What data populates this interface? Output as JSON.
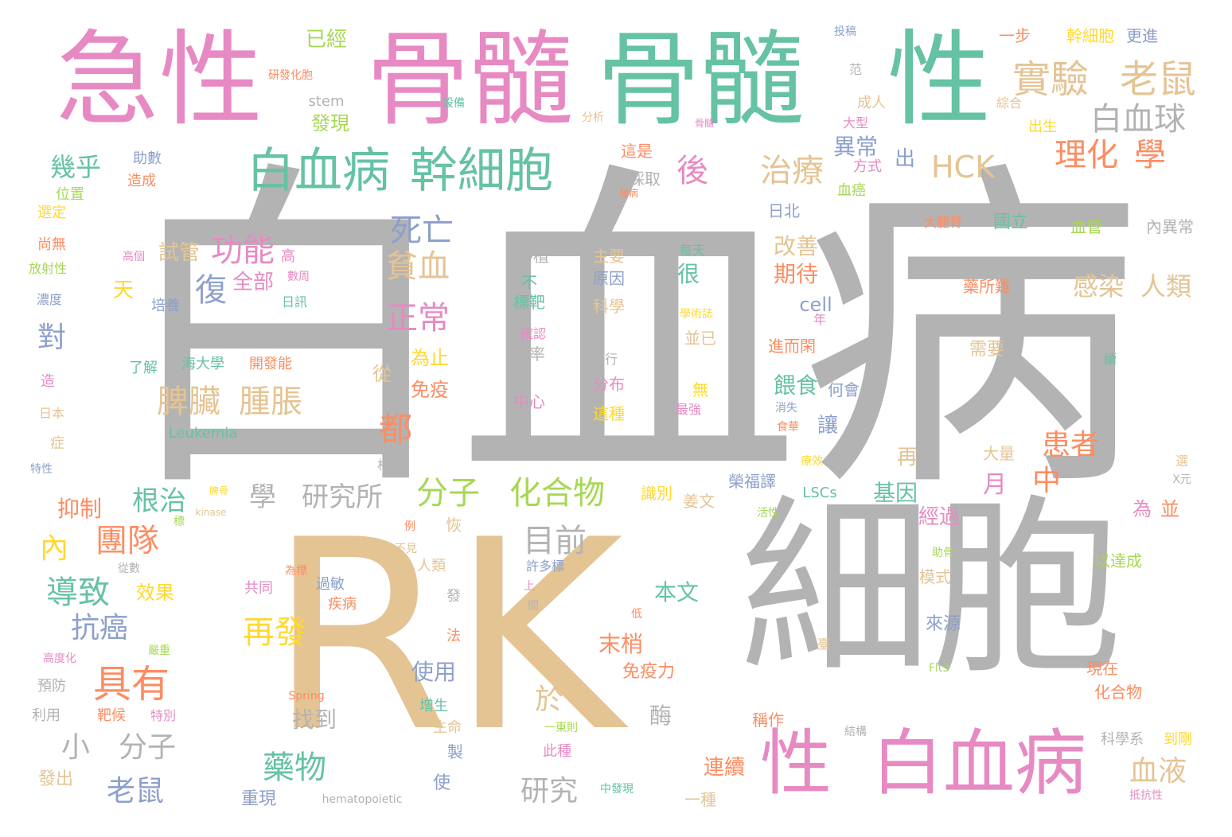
{
  "words": [
    {
      "text": "白血病",
      "color": "#b3b3b3"
    },
    {
      "text": "RK",
      "color": "#e5c494"
    },
    {
      "text": "細胞",
      "color": "#b3b3b3"
    },
    {
      "text": "骨髓",
      "color": "#e78ac3"
    },
    {
      "text": "骨髓",
      "color": "#66c2a5"
    },
    {
      "text": "急性",
      "color": "#e78ac3"
    },
    {
      "text": "性",
      "color": "#66c2a5"
    },
    {
      "text": "白血病",
      "color": "#e78ac3"
    },
    {
      "text": "性",
      "color": "#e78ac3"
    },
    {
      "text": "白血病",
      "color": "#66c2a5"
    },
    {
      "text": "幹細胞",
      "color": "#66c2a5"
    },
    {
      "text": "實驗",
      "color": "#e5c494"
    },
    {
      "text": "老鼠",
      "color": "#e5c494"
    },
    {
      "text": "白血球",
      "color": "#b3b3b3"
    },
    {
      "text": "理化",
      "color": "#fc8d62"
    },
    {
      "text": "學",
      "color": "#fc8d62"
    },
    {
      "text": "HCK",
      "color": "#e5c494"
    },
    {
      "text": "治療",
      "color": "#e5c494"
    },
    {
      "text": "後",
      "color": "#e78ac3"
    },
    {
      "text": "死亡",
      "color": "#8da0cb"
    },
    {
      "text": "貧血",
      "color": "#e5c494"
    },
    {
      "text": "正常",
      "color": "#e78ac3"
    },
    {
      "text": "功能",
      "color": "#e78ac3"
    },
    {
      "text": "試管",
      "color": "#e5c494"
    },
    {
      "text": "全部",
      "color": "#e78ac3"
    },
    {
      "text": "復",
      "color": "#8da0cb"
    },
    {
      "text": "脾臟",
      "color": "#e5c494"
    },
    {
      "text": "腫脹",
      "color": "#e5c494"
    },
    {
      "text": "都",
      "color": "#fc8d62"
    },
    {
      "text": "分子",
      "color": "#a6d854"
    },
    {
      "text": "化合物",
      "color": "#a6d854"
    },
    {
      "text": "目前",
      "color": "#b3b3b3"
    },
    {
      "text": "學",
      "color": "#b3b3b3"
    },
    {
      "text": "研究所",
      "color": "#b3b3b3"
    },
    {
      "text": "根治",
      "color": "#66c2a5"
    },
    {
      "text": "團隊",
      "color": "#fc8d62"
    },
    {
      "text": "內",
      "color": "#ffd92f"
    },
    {
      "text": "導致",
      "color": "#66c2a5"
    },
    {
      "text": "抗癌",
      "color": "#8da0cb"
    },
    {
      "text": "具有",
      "color": "#fc8d62"
    },
    {
      "text": "小",
      "color": "#b3b3b3"
    },
    {
      "text": "分子",
      "color": "#b3b3b3"
    },
    {
      "text": "老鼠",
      "color": "#8da0cb"
    },
    {
      "text": "藥物",
      "color": "#66c2a5"
    },
    {
      "text": "再發",
      "color": "#ffd92f"
    },
    {
      "text": "研究",
      "color": "#b3b3b3"
    },
    {
      "text": "於",
      "color": "#e5c494"
    },
    {
      "text": "患者",
      "color": "#fc8d62"
    },
    {
      "text": "中",
      "color": "#fc8d62"
    },
    {
      "text": "血液",
      "color": "#e5c494"
    },
    {
      "text": "感染",
      "color": "#e5c494"
    },
    {
      "text": "人類",
      "color": "#e5c494"
    },
    {
      "text": "幾乎",
      "color": "#66c2a5"
    },
    {
      "text": "對",
      "color": "#8da0cb"
    },
    {
      "text": "抑制",
      "color": "#fc8d62"
    },
    {
      "text": "異常",
      "color": "#8da0cb"
    },
    {
      "text": "出",
      "color": "#8da0cb"
    },
    {
      "text": "改善",
      "color": "#e5c494"
    },
    {
      "text": "期待",
      "color": "#fc8d62"
    },
    {
      "text": "cell",
      "color": "#8da0cb"
    },
    {
      "text": "餵食",
      "color": "#66c2a5"
    },
    {
      "text": "讓",
      "color": "#8da0cb"
    },
    {
      "text": "基因",
      "color": "#66c2a5"
    },
    {
      "text": "月",
      "color": "#e78ac3"
    },
    {
      "text": "再",
      "color": "#e5c494"
    },
    {
      "text": "經過",
      "color": "#e78ac3"
    },
    {
      "text": "本文",
      "color": "#66c2a5"
    },
    {
      "text": "末梢",
      "color": "#fc8d62"
    },
    {
      "text": "免疫力",
      "color": "#fc8d62"
    },
    {
      "text": "使用",
      "color": "#8da0cb"
    },
    {
      "text": "找到",
      "color": "#b3b3b3"
    },
    {
      "text": "酶",
      "color": "#b3b3b3"
    },
    {
      "text": "連續",
      "color": "#fc8d62"
    },
    {
      "text": "效果",
      "color": "#ffd92f"
    },
    {
      "text": "為止",
      "color": "#ffd92f"
    },
    {
      "text": "免疫",
      "color": "#fc8d62"
    },
    {
      "text": "從",
      "color": "#e5c494"
    },
    {
      "text": "很",
      "color": "#66c2a5"
    },
    {
      "text": "天",
      "color": "#ffd92f"
    },
    {
      "text": "已經",
      "color": "#a6d854"
    },
    {
      "text": "發現",
      "color": "#a6d854"
    },
    {
      "text": "一步",
      "color": "#fc8d62"
    },
    {
      "text": "幹細胞",
      "color": "#ffd92f"
    },
    {
      "text": "更進",
      "color": "#8da0cb"
    },
    {
      "text": "國立",
      "color": "#66c2a5"
    },
    {
      "text": "血管",
      "color": "#a6d854"
    },
    {
      "text": "內異常",
      "color": "#b3b3b3"
    },
    {
      "text": "大腿骨",
      "color": "#fc8d62"
    },
    {
      "text": "藥所難",
      "color": "#fc8d62"
    },
    {
      "text": "進而閑",
      "color": "#fc8d62"
    },
    {
      "text": "需要",
      "color": "#e5c494"
    },
    {
      "text": "大量",
      "color": "#e5c494"
    },
    {
      "text": "為",
      "color": "#e78ac3"
    },
    {
      "text": "並",
      "color": "#fc8d62"
    },
    {
      "text": "以達成",
      "color": "#a6d854"
    },
    {
      "text": "模式",
      "color": "#e5c494"
    },
    {
      "text": "來源",
      "color": "#8da0cb"
    },
    {
      "text": "現在",
      "color": "#fc8d62"
    },
    {
      "text": "化合物",
      "color": "#fc8d62"
    },
    {
      "text": "科學系",
      "color": "#b3b3b3"
    },
    {
      "text": "到剛",
      "color": "#ffd92f"
    },
    {
      "text": "榮福譯",
      "color": "#8da0cb"
    },
    {
      "text": "LSCs",
      "color": "#66c2a5"
    },
    {
      "text": "識別",
      "color": "#ffd92f"
    },
    {
      "text": "姜文",
      "color": "#e5c494"
    },
    {
      "text": "中發現",
      "color": "#66c2a5"
    },
    {
      "text": "一種",
      "color": "#e5c494"
    },
    {
      "text": "重現",
      "color": "#8da0cb"
    },
    {
      "text": "hematopoietic",
      "color": "#b3b3b3"
    },
    {
      "text": "稱作",
      "color": "#fc8d62"
    },
    {
      "text": "何會",
      "color": "#8da0cb"
    },
    {
      "text": "日北",
      "color": "#8da0cb"
    },
    {
      "text": "採取",
      "color": "#b3b3b3"
    },
    {
      "text": "這是",
      "color": "#fc8d62"
    },
    {
      "text": "方式",
      "color": "#e78ac3"
    },
    {
      "text": "血癌",
      "color": "#a6d854"
    },
    {
      "text": "大型",
      "color": "#e78ac3"
    },
    {
      "text": "成人",
      "color": "#e5c494"
    },
    {
      "text": "出生",
      "color": "#ffd92f"
    },
    {
      "text": "綜合",
      "color": "#e5c494"
    },
    {
      "text": "分析",
      "color": "#e5c494"
    },
    {
      "text": "設備",
      "color": "#66c2a5"
    },
    {
      "text": "stem",
      "color": "#b3b3b3"
    },
    {
      "text": "移植",
      "color": "#b3b3b3"
    },
    {
      "text": "主要",
      "color": "#e5c494"
    },
    {
      "text": "原因",
      "color": "#8da0cb"
    },
    {
      "text": "科學",
      "color": "#e5c494"
    },
    {
      "text": "不",
      "color": "#66c2a5"
    },
    {
      "text": "標靶",
      "color": "#66c2a5"
    },
    {
      "text": "確認",
      "color": "#e78ac3"
    },
    {
      "text": "發率",
      "color": "#b3b3b3"
    },
    {
      "text": "中心",
      "color": "#e78ac3"
    },
    {
      "text": "進行",
      "color": "#b3b3b3"
    },
    {
      "text": "分布",
      "color": "#e78ac3"
    },
    {
      "text": "這種",
      "color": "#ffd92f"
    },
    {
      "text": "每天",
      "color": "#66c2a5"
    },
    {
      "text": "並已",
      "color": "#e5c494"
    },
    {
      "text": "無",
      "color": "#ffd92f"
    },
    {
      "text": "最強",
      "color": "#e78ac3"
    },
    {
      "text": "學術誌",
      "color": "#ffd92f"
    },
    {
      "text": "高個",
      "color": "#e78ac3"
    },
    {
      "text": "高",
      "color": "#e78ac3"
    },
    {
      "text": "數周",
      "color": "#e78ac3"
    },
    {
      "text": "日訊",
      "color": "#66c2a5"
    },
    {
      "text": "培養",
      "color": "#8da0cb"
    },
    {
      "text": "了解",
      "color": "#66c2a5"
    },
    {
      "text": "海大學",
      "color": "#66c2a5"
    },
    {
      "text": "開發能",
      "color": "#fc8d62"
    },
    {
      "text": "Leukemia",
      "color": "#66c2a5"
    },
    {
      "text": "助數",
      "color": "#8da0cb"
    },
    {
      "text": "造成",
      "color": "#fc8d62"
    },
    {
      "text": "位置",
      "color": "#a6d854"
    },
    {
      "text": "選定",
      "color": "#ffd92f"
    },
    {
      "text": "尚無",
      "color": "#fc8d62"
    },
    {
      "text": "放射性",
      "color": "#a6d854"
    },
    {
      "text": "濃度",
      "color": "#8da0cb"
    },
    {
      "text": "造",
      "color": "#e78ac3"
    },
    {
      "text": "日本",
      "color": "#e5c494"
    },
    {
      "text": "症",
      "color": "#e5c494"
    },
    {
      "text": "特性",
      "color": "#8da0cb"
    },
    {
      "text": "相當",
      "color": "#b3b3b3"
    },
    {
      "text": "kinase",
      "color": "#e5c494"
    },
    {
      "text": "脾骨",
      "color": "#ffd92f"
    },
    {
      "text": "標",
      "color": "#a6d854"
    },
    {
      "text": "從數",
      "color": "#b3b3b3"
    },
    {
      "text": "共同",
      "color": "#e78ac3"
    },
    {
      "text": "為標",
      "color": "#fc8d62"
    },
    {
      "text": "過敏",
      "color": "#8da0cb"
    },
    {
      "text": "疾病",
      "color": "#fc8d62"
    },
    {
      "text": "高度化",
      "color": "#e78ac3"
    },
    {
      "text": "嚴重",
      "color": "#a6d854"
    },
    {
      "text": "預防",
      "color": "#b3b3b3"
    },
    {
      "text": "利用",
      "color": "#b3b3b3"
    },
    {
      "text": "靶候",
      "color": "#fc8d62"
    },
    {
      "text": "特別",
      "color": "#e78ac3"
    },
    {
      "text": "Spring",
      "color": "#fc8d62"
    },
    {
      "text": "發出",
      "color": "#e5c494"
    },
    {
      "text": "生命",
      "color": "#e5c494"
    },
    {
      "text": "製",
      "color": "#8da0cb"
    },
    {
      "text": "使",
      "color": "#8da0cb"
    },
    {
      "text": "增生",
      "color": "#66c2a5"
    },
    {
      "text": "法",
      "color": "#fc8d62"
    },
    {
      "text": "發",
      "color": "#b3b3b3"
    },
    {
      "text": "人類",
      "color": "#e5c494"
    },
    {
      "text": "恢",
      "color": "#e5c494"
    },
    {
      "text": "不見",
      "color": "#e5c494"
    },
    {
      "text": "例",
      "color": "#fc8d62"
    },
    {
      "text": "許多標",
      "color": "#8da0cb"
    },
    {
      "text": "上",
      "color": "#e78ac3"
    },
    {
      "text": "間",
      "color": "#b3b3b3"
    },
    {
      "text": "低",
      "color": "#fc8d62"
    },
    {
      "text": "一東則",
      "color": "#a6d854"
    },
    {
      "text": "此種",
      "color": "#e78ac3"
    },
    {
      "text": "活性",
      "color": "#a6d854"
    },
    {
      "text": "Flt3",
      "color": "#a6d854"
    },
    {
      "text": "臺",
      "color": "#e5c494"
    },
    {
      "text": "助骨",
      "color": "#a6d854"
    },
    {
      "text": "療效",
      "color": "#ffd92f"
    },
    {
      "text": "食華",
      "color": "#fc8d62"
    },
    {
      "text": "消失",
      "color": "#8da0cb"
    },
    {
      "text": "結構",
      "color": "#b3b3b3"
    },
    {
      "text": "抵抗性",
      "color": "#e78ac3"
    },
    {
      "text": "X元",
      "color": "#b3b3b3"
    },
    {
      "text": "選",
      "color": "#e5c494"
    },
    {
      "text": "續",
      "color": "#66c2a5"
    },
    {
      "text": "年",
      "color": "#e78ac3"
    },
    {
      "text": "投稿",
      "color": "#8da0cb"
    },
    {
      "text": "范",
      "color": "#b3b3b3"
    },
    {
      "text": "骨髓",
      "color": "#e78ac3"
    },
    {
      "text": "發病",
      "color": "#fc8d62"
    },
    {
      "text": "研發化胞",
      "color": "#fc8d62"
    }
  ]
}
